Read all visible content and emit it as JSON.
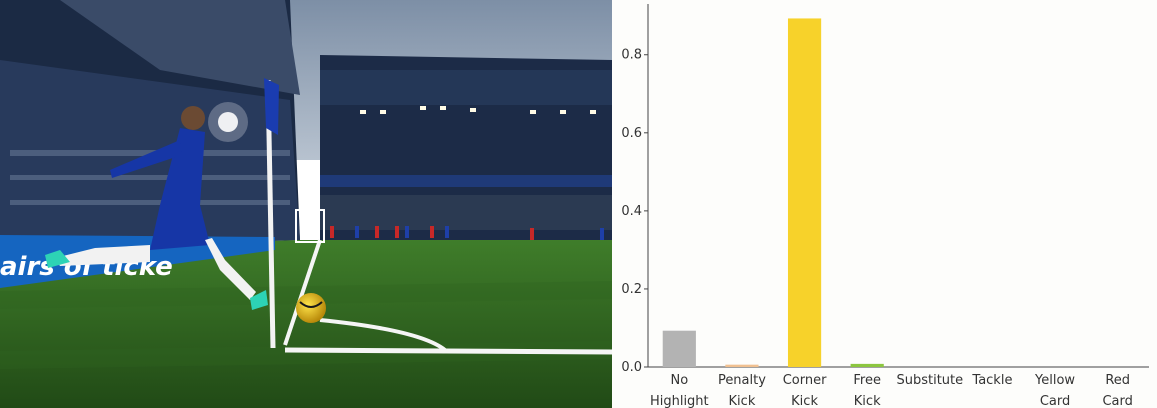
{
  "photo": {
    "description_icon": "football-corner-kick-photo",
    "banner_text": "airs of ticke"
  },
  "chart_data": {
    "type": "bar",
    "title": "",
    "xlabel": "",
    "ylabel": "",
    "ylim": [
      0,
      0.93
    ],
    "yticks": [
      0.0,
      0.2,
      0.4,
      0.6,
      0.8
    ],
    "ytick_labels": [
      "0.0",
      "0.2",
      "0.4",
      "0.6",
      "0.8"
    ],
    "grid": false,
    "categories": [
      [
        "No",
        "Highlight"
      ],
      [
        "Penalty",
        "Kick"
      ],
      [
        "Corner",
        "Kick"
      ],
      [
        "Free",
        "Kick"
      ],
      [
        "Substitute"
      ],
      [
        "Tackle"
      ],
      [
        "Yellow",
        "Card"
      ],
      [
        "Red",
        "Card"
      ]
    ],
    "values": [
      0.093,
      0.006,
      0.893,
      0.008,
      0.0,
      0.0,
      0.0,
      0.0
    ],
    "colors": [
      "#b3b3b3",
      "#f0c090",
      "#f7d22a",
      "#8cc63f",
      "#cccccc",
      "#cccccc",
      "#cccccc",
      "#cccccc"
    ]
  }
}
